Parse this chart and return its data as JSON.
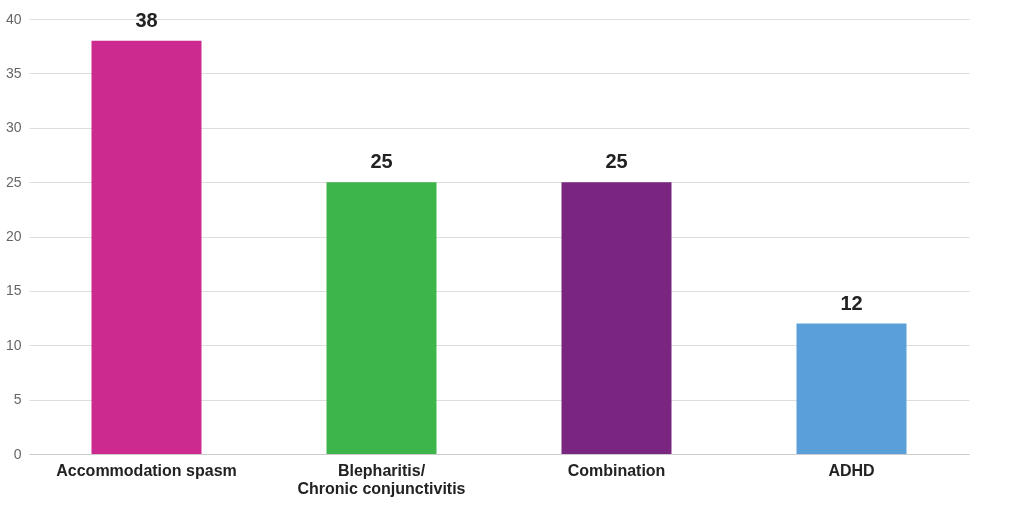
{
  "chart_data": {
    "type": "bar",
    "categories": [
      "Accommodation spasm",
      "Blepharitis/\nChronic conjunctivitis",
      "Combination",
      "ADHD"
    ],
    "values": [
      38,
      25,
      25,
      12
    ],
    "colors": [
      "#cc2a8e",
      "#3db54a",
      "#7a2580",
      "#5b9fd8"
    ],
    "ylim": [
      0,
      40
    ],
    "yticks": [
      0,
      5,
      10,
      15,
      20,
      25,
      30,
      35,
      40
    ],
    "grid": "y",
    "data_labels": true
  }
}
